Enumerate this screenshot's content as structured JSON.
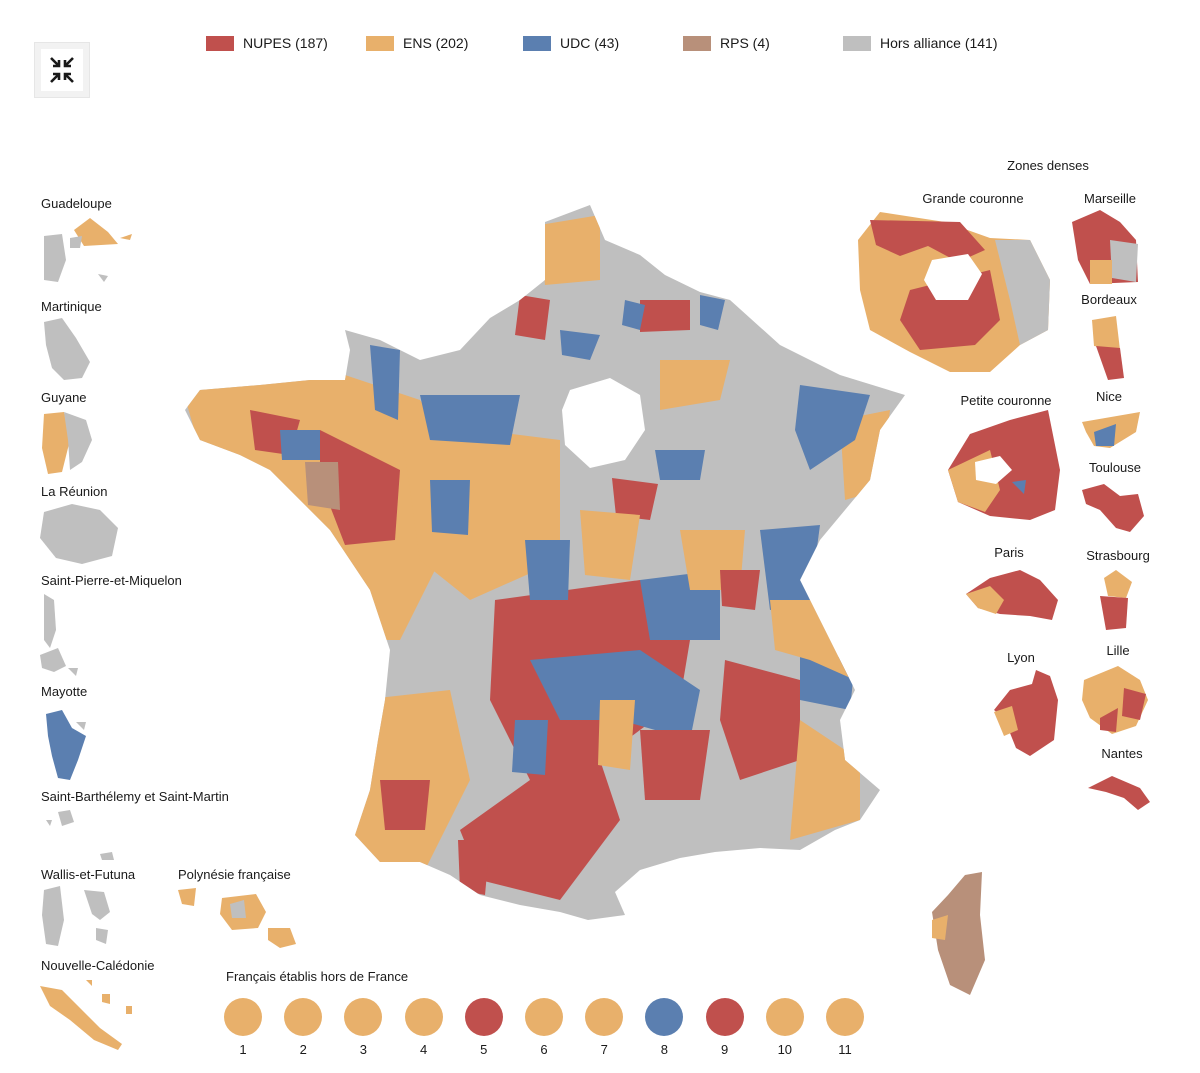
{
  "colors": {
    "nupes": "#c0504d",
    "ens": "#e8b06b",
    "udc": "#5b7fb0",
    "rps": "#b8907a",
    "hors": "#bfbfbf"
  },
  "legend": [
    {
      "key": "nupes",
      "label": "NUPES (187)"
    },
    {
      "key": "ens",
      "label": "ENS (202)"
    },
    {
      "key": "udc",
      "label": "UDC (43)"
    },
    {
      "key": "rps",
      "label": "RPS (4)"
    },
    {
      "key": "hors",
      "label": "Hors alliance (141)"
    }
  ],
  "controls": {
    "collapse_icon": "collapse-arrows-icon"
  },
  "overseas": {
    "guadeloupe": "Guadeloupe",
    "martinique": "Martinique",
    "guyane": "Guyane",
    "reunion": "La Réunion",
    "spm": "Saint-Pierre-et-Miquelon",
    "mayotte": "Mayotte",
    "stbarth": "Saint-Barthélemy et Saint-Martin",
    "wallis": "Wallis-et-Futuna",
    "polynesie": "Polynésie française",
    "caledonie": "Nouvelle-Calédonie"
  },
  "dense_zones": {
    "title": "Zones denses",
    "grande_couronne": "Grande couronne",
    "marseille": "Marseille",
    "bordeaux": "Bordeaux",
    "petite_couronne": "Petite couronne",
    "nice": "Nice",
    "toulouse": "Toulouse",
    "paris": "Paris",
    "strasbourg": "Strasbourg",
    "lyon": "Lyon",
    "lille": "Lille",
    "nantes": "Nantes"
  },
  "abroad": {
    "title": "Français établis hors de France",
    "circonscriptions": [
      {
        "num": "1",
        "party": "ens"
      },
      {
        "num": "2",
        "party": "ens"
      },
      {
        "num": "3",
        "party": "ens"
      },
      {
        "num": "4",
        "party": "ens"
      },
      {
        "num": "5",
        "party": "nupes"
      },
      {
        "num": "6",
        "party": "ens"
      },
      {
        "num": "7",
        "party": "ens"
      },
      {
        "num": "8",
        "party": "udc"
      },
      {
        "num": "9",
        "party": "nupes"
      },
      {
        "num": "10",
        "party": "ens"
      },
      {
        "num": "11",
        "party": "ens"
      }
    ]
  }
}
